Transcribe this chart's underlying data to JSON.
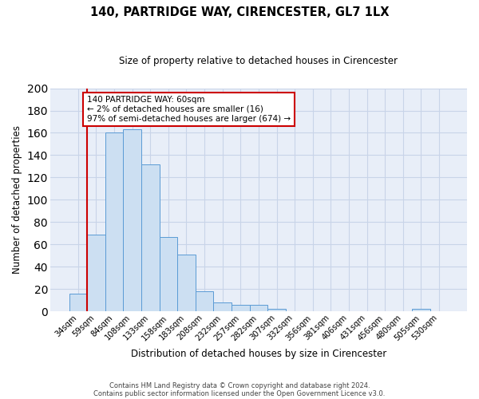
{
  "title": "140, PARTRIDGE WAY, CIRENCESTER, GL7 1LX",
  "subtitle": "Size of property relative to detached houses in Cirencester",
  "bar_labels": [
    "34sqm",
    "59sqm",
    "84sqm",
    "108sqm",
    "133sqm",
    "158sqm",
    "183sqm",
    "208sqm",
    "232sqm",
    "257sqm",
    "282sqm",
    "307sqm",
    "332sqm",
    "356sqm",
    "381sqm",
    "406sqm",
    "431sqm",
    "456sqm",
    "480sqm",
    "505sqm",
    "530sqm"
  ],
  "bar_values": [
    16,
    69,
    160,
    163,
    132,
    67,
    51,
    18,
    8,
    6,
    6,
    2,
    0,
    0,
    0,
    0,
    0,
    0,
    0,
    2,
    0
  ],
  "bar_color": "#ccdff2",
  "bar_edge_color": "#5b9bd5",
  "bar_width": 1.0,
  "ylim": [
    0,
    200
  ],
  "yticks": [
    0,
    20,
    40,
    60,
    80,
    100,
    120,
    140,
    160,
    180,
    200
  ],
  "ylabel": "Number of detached properties",
  "xlabel": "Distribution of detached houses by size in Cirencester",
  "annotation_title": "140 PARTRIDGE WAY: 60sqm",
  "annotation_line1": "← 2% of detached houses are smaller (16)",
  "annotation_line2": "97% of semi-detached houses are larger (674) →",
  "vline_color": "#cc0000",
  "grid_color": "#c8d4e8",
  "background_color": "#e8eef8",
  "footer_line1": "Contains HM Land Registry data © Crown copyright and database right 2024.",
  "footer_line2": "Contains public sector information licensed under the Open Government Licence v3.0."
}
